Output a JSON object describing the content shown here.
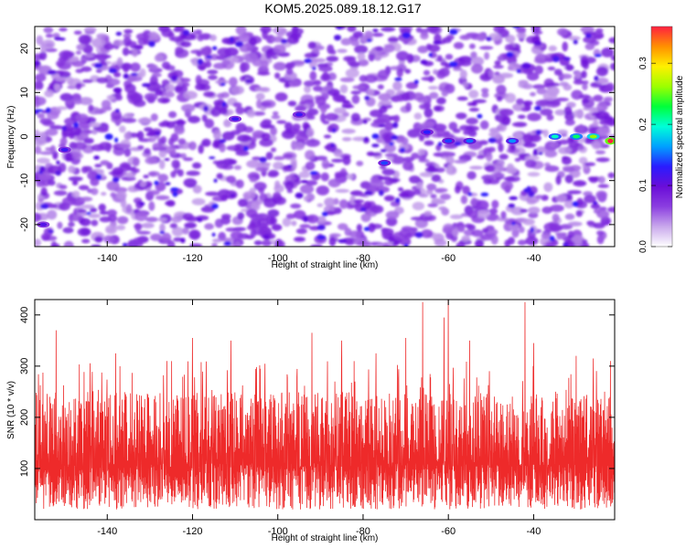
{
  "figure_title": "KOM5.2025.089.18.12.G17",
  "chart_data": [
    {
      "type": "heatmap",
      "title": "KOM5.2025.089.18.12.G17",
      "xlabel": "Height of straight line (km)",
      "ylabel": "Frequency (Hz)",
      "xlim": [
        -157,
        -21
      ],
      "ylim": [
        -25,
        25
      ],
      "x_ticks": [
        -140,
        -120,
        -100,
        -80,
        -60,
        -40
      ],
      "y_ticks": [
        -20,
        -10,
        0,
        10,
        20
      ],
      "colorbar": {
        "label": "Normalized spectral amplitude",
        "range": [
          0.0,
          0.36
        ],
        "ticks": [
          "0.0",
          "0.1",
          "0.2",
          "0.3"
        ],
        "tick_values": [
          0.0,
          0.1,
          0.2,
          0.3
        ],
        "colors": [
          "#ffffff",
          "#c9a8ec",
          "#8b3ee0",
          "#6a0dd8",
          "#2a1cff",
          "#00a0ff",
          "#00ffd8",
          "#00ff3a",
          "#9cff00",
          "#fff000",
          "#ff9000",
          "#ff2040"
        ]
      },
      "peak": {
        "x": -22,
        "y": -1,
        "value": 0.36
      },
      "features": [
        {
          "x": -35,
          "y": 0,
          "value": 0.2
        },
        {
          "x": -30,
          "y": 0,
          "value": 0.22
        },
        {
          "x": -26,
          "y": 0,
          "value": 0.26
        },
        {
          "x": -45,
          "y": -1,
          "value": 0.16
        },
        {
          "x": -55,
          "y": -1,
          "value": 0.15
        },
        {
          "x": -60,
          "y": -1,
          "value": 0.14
        },
        {
          "x": -65,
          "y": 1,
          "value": 0.13
        },
        {
          "x": -75,
          "y": -6,
          "value": 0.14
        },
        {
          "x": -110,
          "y": 4,
          "value": 0.12
        },
        {
          "x": -95,
          "y": 5,
          "value": 0.12
        },
        {
          "x": -150,
          "y": -3,
          "value": 0.12
        },
        {
          "x": -155,
          "y": -20,
          "value": 0.11
        }
      ],
      "grid": false
    },
    {
      "type": "line",
      "xlabel": "Height of straight line (km)",
      "ylabel": "SNR (10 * v/v)",
      "xlim": [
        -157,
        -21
      ],
      "ylim": [
        0,
        430
      ],
      "x_ticks": [
        -140,
        -120,
        -100,
        -80,
        -60,
        -40
      ],
      "y_ticks": [
        100,
        200,
        300,
        400
      ],
      "color": "#ee2a2a",
      "baseline_range": [
        20,
        250
      ],
      "typical_range": [
        50,
        200
      ],
      "peaks": [
        {
          "x": -152,
          "y": 370
        },
        {
          "x": -138,
          "y": 325
        },
        {
          "x": -126,
          "y": 310
        },
        {
          "x": -120,
          "y": 355
        },
        {
          "x": -111,
          "y": 350
        },
        {
          "x": -92,
          "y": 365
        },
        {
          "x": -85,
          "y": 350
        },
        {
          "x": -77,
          "y": 325
        },
        {
          "x": -70,
          "y": 355
        },
        {
          "x": -66,
          "y": 425
        },
        {
          "x": -61,
          "y": 395
        },
        {
          "x": -60,
          "y": 430
        },
        {
          "x": -55,
          "y": 350
        },
        {
          "x": -42,
          "y": 425
        },
        {
          "x": -40,
          "y": 345
        },
        {
          "x": -30,
          "y": 320
        },
        {
          "x": -26,
          "y": 315
        },
        {
          "x": -22,
          "y": 310
        }
      ],
      "grid": false
    }
  ]
}
